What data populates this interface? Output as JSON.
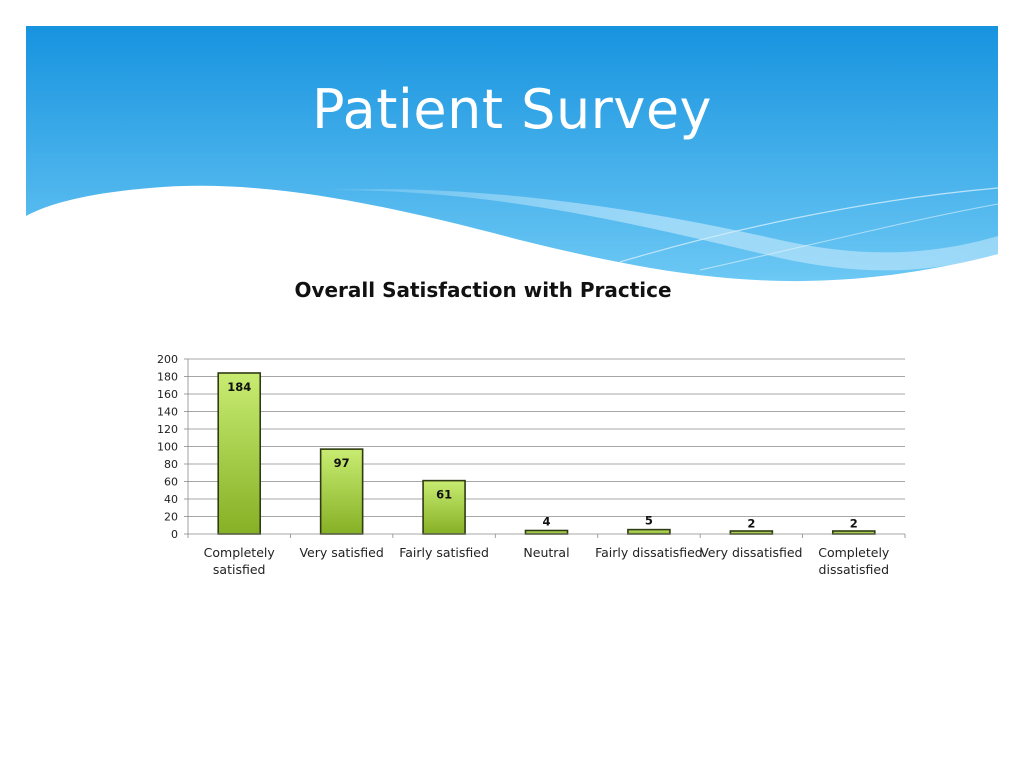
{
  "slide": {
    "title": "Patient Survey"
  },
  "colors": {
    "banner_top": "#1793df",
    "banner_bottom": "#6cc8f4",
    "bar_top": "#c8ec72",
    "bar_bottom": "#86b025",
    "bar_stroke": "#2f3b12"
  },
  "chart_data": {
    "type": "bar",
    "title": "Overall Satisfaction with Practice",
    "xlabel": "",
    "ylabel": "",
    "ylim": [
      0,
      200
    ],
    "yticks": [
      0,
      20,
      40,
      60,
      80,
      100,
      120,
      140,
      160,
      180,
      200
    ],
    "grid": true,
    "legend": "none",
    "categories": [
      [
        "Completely",
        "satisfied"
      ],
      [
        "Very satisfied"
      ],
      [
        "Fairly satisfied"
      ],
      [
        "Neutral"
      ],
      [
        "Fairly dissatisfied"
      ],
      [
        "Very dissatisfied"
      ],
      [
        "Completely",
        "dissatisfied"
      ]
    ],
    "values": [
      184,
      97,
      61,
      4,
      5,
      2,
      2
    ]
  }
}
